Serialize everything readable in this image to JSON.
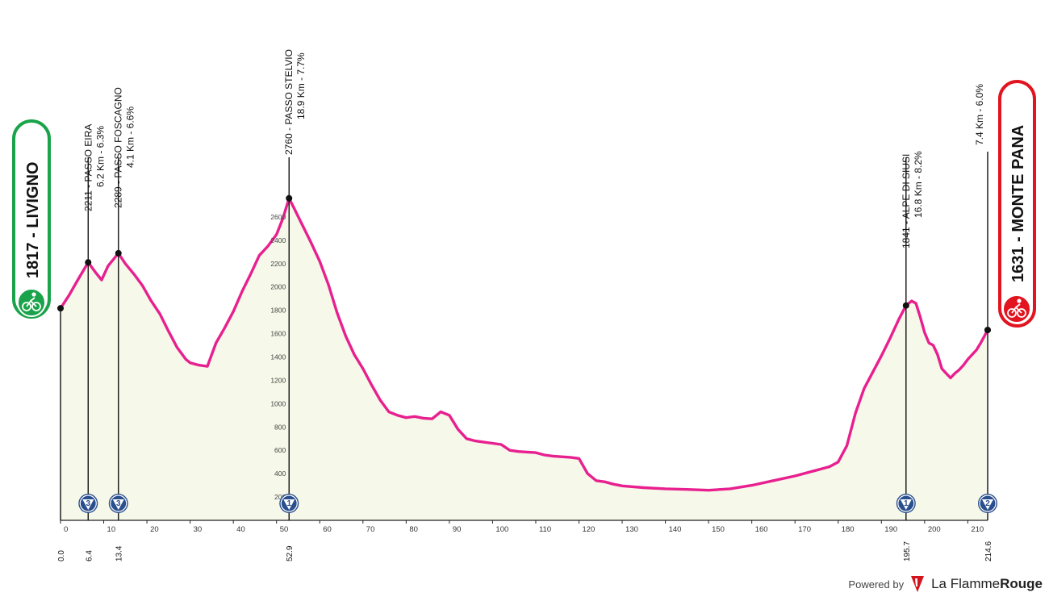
{
  "chart_data": {
    "type": "area",
    "title": "",
    "xlabel": "",
    "ylabel": "",
    "xlim": [
      0,
      214.6
    ],
    "ylim": [
      0,
      2800
    ],
    "grid": true,
    "colors": {
      "profile": "#e8208f",
      "fill": "#f6f8e9",
      "start_badge": "#1aa34a",
      "finish_badge": "#e1141f",
      "climb_badge": "#2a4f8e"
    },
    "x_ticks": [
      0,
      10,
      20,
      30,
      40,
      50,
      60,
      70,
      80,
      90,
      100,
      110,
      120,
      130,
      140,
      150,
      160,
      170,
      180,
      190,
      200,
      210
    ],
    "y_ticks": [
      200,
      400,
      600,
      800,
      1000,
      1200,
      1400,
      1600,
      1800,
      2000,
      2200,
      2400,
      2600
    ],
    "profile": {
      "x": [
        0,
        2,
        4,
        6.4,
        8,
        9.5,
        11,
        13.4,
        15,
        17,
        19,
        21,
        23,
        25,
        27,
        29,
        30,
        32,
        34,
        36,
        38,
        40,
        42,
        44,
        46,
        48,
        50,
        51.5,
        52.9,
        54,
        56,
        58,
        60,
        62,
        64,
        66,
        68,
        70,
        72,
        74,
        76,
        78,
        80,
        82,
        84,
        86,
        88,
        90,
        92,
        94,
        96,
        98,
        100,
        102,
        104,
        106,
        108,
        110,
        112,
        114,
        116,
        118,
        120,
        122,
        124,
        126,
        128,
        130,
        135,
        140,
        145,
        150,
        155,
        160,
        165,
        170,
        175,
        178,
        180,
        182,
        184,
        186,
        188,
        190,
        192,
        194,
        195.7,
        197,
        198,
        199,
        200,
        201,
        202,
        203,
        204,
        205,
        206,
        207,
        208,
        209,
        210,
        211,
        212,
        213,
        214.6
      ],
      "y": [
        1817,
        1930,
        2060,
        2211,
        2130,
        2060,
        2180,
        2289,
        2200,
        2110,
        2010,
        1880,
        1770,
        1620,
        1480,
        1380,
        1350,
        1330,
        1320,
        1520,
        1650,
        1790,
        1960,
        2110,
        2270,
        2350,
        2450,
        2590,
        2760,
        2680,
        2530,
        2380,
        2220,
        2020,
        1780,
        1580,
        1420,
        1300,
        1160,
        1030,
        930,
        900,
        880,
        890,
        875,
        870,
        930,
        900,
        780,
        700,
        680,
        670,
        660,
        650,
        600,
        590,
        585,
        580,
        560,
        550,
        545,
        540,
        530,
        400,
        340,
        330,
        310,
        295,
        280,
        270,
        265,
        258,
        270,
        300,
        340,
        380,
        430,
        460,
        500,
        640,
        920,
        1130,
        1270,
        1410,
        1560,
        1720,
        1841,
        1880,
        1860,
        1740,
        1610,
        1520,
        1500,
        1420,
        1300,
        1260,
        1220,
        1260,
        1290,
        1330,
        1380,
        1420,
        1460,
        1520,
        1631
      ]
    },
    "start": {
      "altitude": "1817",
      "name": "LIVIGNO",
      "label": "1817 - LIVIGNO",
      "km_label": "0.0",
      "km": 0,
      "elevation": 1817
    },
    "finish": {
      "altitude": "1631",
      "name": "MONTE PANA",
      "label": "1631 - MONTE PANA",
      "km_label": "214.6",
      "km": 214.6,
      "elevation": 1631
    },
    "climbs": [
      {
        "km": 6.4,
        "elevation": 2211,
        "km_label": "6.4",
        "category": "3",
        "line1": "2211 - PASSO EIRA",
        "line2": "6.2 Km - 6.3%"
      },
      {
        "km": 13.4,
        "elevation": 2289,
        "km_label": "13.4",
        "category": "3",
        "line1": "2289 - PASSO FOSCAGNO",
        "line2": "4.1 Km - 6.6%"
      },
      {
        "km": 52.9,
        "elevation": 2760,
        "km_label": "52.9",
        "category": "1",
        "line1": "2760 - PASSO STELVIO",
        "line2": "18.9 Km - 7.7%"
      },
      {
        "km": 195.7,
        "elevation": 1841,
        "km_label": "195.7",
        "category": "1",
        "line1": "1841 - ALPE DI SIUSI",
        "line2": "16.8 Km - 8.2%"
      },
      {
        "km": 214.6,
        "elevation": 1631,
        "km_label": "",
        "category": "2",
        "line1": "",
        "line2": "7.4 Km - 6.0%"
      }
    ]
  },
  "footer": {
    "powered": "Powered by",
    "brand_light": "La Flamme",
    "brand_bold": "Rouge",
    "logo_icon": "flamme-rouge-logo-icon"
  }
}
